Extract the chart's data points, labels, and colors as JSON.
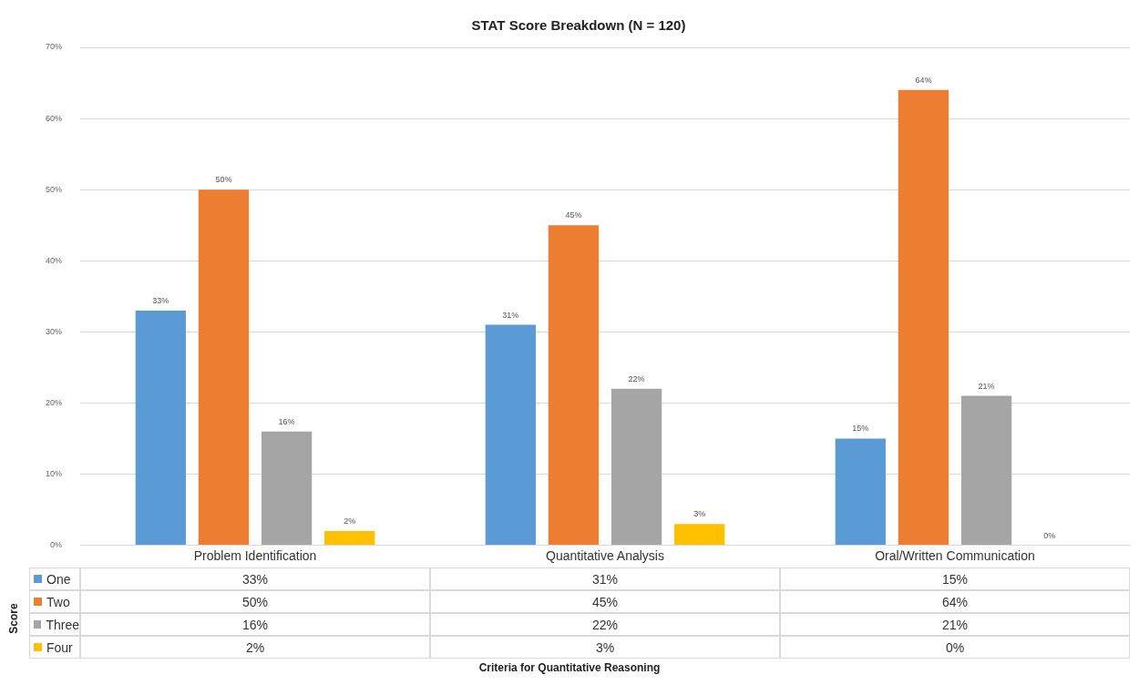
{
  "chart_data": {
    "type": "bar",
    "title": "STAT Score Breakdown (N = 120)",
    "ylabel": "Score",
    "annotations": [
      "Criteria for Quantitative Reasoning"
    ],
    "categories": [
      "Problem Identification",
      "Quantitative Analysis",
      "Oral/Written Communication"
    ],
    "series": [
      {
        "name": "One",
        "color": "#5b9bd5",
        "values": [
          33,
          31,
          15
        ],
        "value_labels": [
          "33%",
          "31%",
          "15%"
        ]
      },
      {
        "name": "Two",
        "color": "#ed7d31",
        "values": [
          50,
          45,
          64
        ],
        "value_labels": [
          "50%",
          "45%",
          "64%"
        ]
      },
      {
        "name": "Three",
        "color": "#a5a5a5",
        "values": [
          16,
          22,
          21
        ],
        "value_labels": [
          "16%",
          "22%",
          "21%"
        ]
      },
      {
        "name": "Four",
        "color": "#ffc000",
        "values": [
          2,
          3,
          0
        ],
        "value_labels": [
          "2%",
          "3%",
          "0%"
        ]
      }
    ],
    "ylim": [
      0,
      70
    ],
    "yticks": [
      {
        "value": 0,
        "label": "0%"
      },
      {
        "value": 10,
        "label": "10%"
      },
      {
        "value": 20,
        "label": "20%"
      },
      {
        "value": 30,
        "label": "30%"
      },
      {
        "value": 40,
        "label": "40%"
      },
      {
        "value": 50,
        "label": "50%"
      },
      {
        "value": 60,
        "label": "60%"
      },
      {
        "value": 70,
        "label": "70%"
      }
    ],
    "grid": "y",
    "legend": "bottom"
  }
}
